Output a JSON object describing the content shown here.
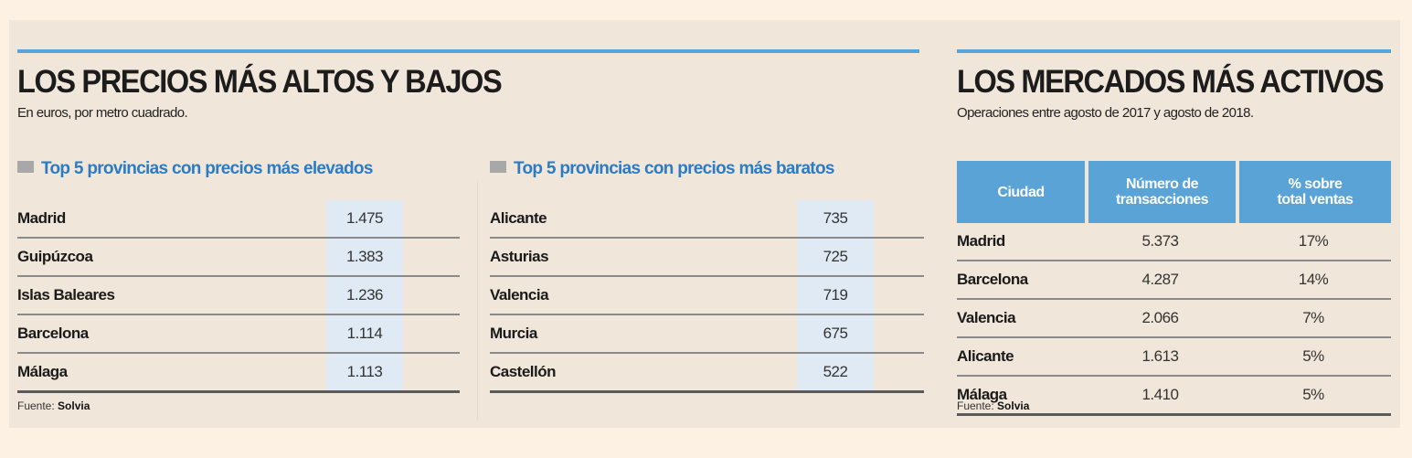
{
  "chart_data": [
    {
      "type": "table",
      "title": "LOS PRECIOS MÁS ALTOS Y BAJOS",
      "subtitle": "En euros, por metro cuadrado.",
      "groups": [
        {
          "label": "Top 5 provincias con precios más elevados",
          "rows": [
            {
              "name": "Madrid",
              "value": "1.475"
            },
            {
              "name": "Guipúzcoa",
              "value": "1.383"
            },
            {
              "name": "Islas Baleares",
              "value": "1.236"
            },
            {
              "name": "Barcelona",
              "value": "1.114"
            },
            {
              "name": "Málaga",
              "value": "1.113"
            }
          ]
        },
        {
          "label": "Top 5 provincias con precios más baratos",
          "rows": [
            {
              "name": "Alicante",
              "value": "735"
            },
            {
              "name": "Asturias",
              "value": "725"
            },
            {
              "name": "Valencia",
              "value": "719"
            },
            {
              "name": "Murcia",
              "value": "675"
            },
            {
              "name": "Castellón",
              "value": "522"
            }
          ]
        }
      ],
      "source_label": "Fuente:",
      "source": "Solvia"
    },
    {
      "type": "table",
      "title": "LOS MERCADOS MÁS ACTIVOS",
      "subtitle": "Operaciones entre agosto de 2017 y agosto de 2018.",
      "columns": [
        "Ciudad",
        "Número de transacciones",
        "% sobre total ventas"
      ],
      "rows": [
        {
          "city": "Madrid",
          "transactions": "5.373",
          "share": "17%"
        },
        {
          "city": "Barcelona",
          "transactions": "4.287",
          "share": "14%"
        },
        {
          "city": "Valencia",
          "transactions": "2.066",
          "share": "7%"
        },
        {
          "city": "Alicante",
          "transactions": "1.613",
          "share": "5%"
        },
        {
          "city": "Málaga",
          "transactions": "1.410",
          "share": "5%"
        }
      ],
      "source_label": "Fuente:",
      "source": "Solvia"
    }
  ],
  "colors": {
    "accent": "#5aa3d6",
    "subheader": "#2b7cc4",
    "panel": "#f1e6da",
    "page": "#fdf1e3",
    "value_band": "#dfeaf4"
  }
}
